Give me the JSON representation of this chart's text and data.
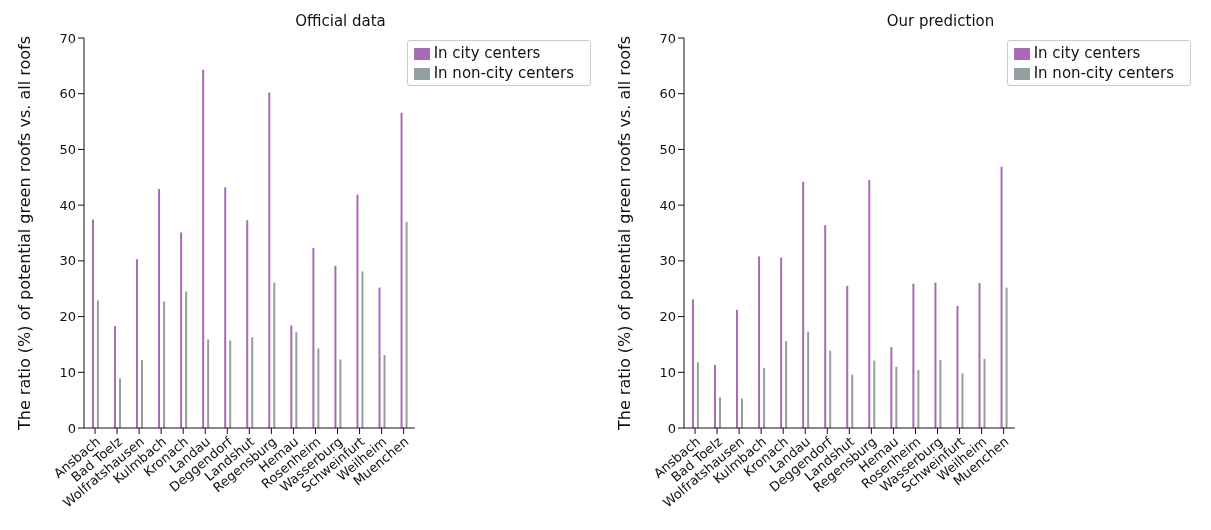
{
  "chart_data": [
    {
      "type": "bar",
      "title": "Official data",
      "ylabel": "The ratio (%) of potential green roofs vs. all roofs",
      "categories": [
        "Ansbach",
        "Bad Toelz",
        "Wolfratshausen",
        "Kulmbach",
        "Kronach",
        "Landau",
        "Deggendorf",
        "Landshut",
        "Regensburg",
        "Hemau",
        "Rosenheim",
        "Wasserburg",
        "Schweinfurt",
        "Weilheim",
        "Muenchen"
      ],
      "series": [
        {
          "name": "In city centers",
          "color": "#a86ab4",
          "values": [
            37.4,
            18.3,
            30.3,
            42.9,
            35.1,
            64.3,
            43.2,
            37.3,
            60.2,
            18.4,
            32.3,
            29.1,
            41.9,
            25.2,
            56.6
          ]
        },
        {
          "name": "In non-city centers",
          "color": "#939fa1",
          "values": [
            22.9,
            8.9,
            12.2,
            22.7,
            24.5,
            15.9,
            15.7,
            16.3,
            26.1,
            17.2,
            14.3,
            12.3,
            28.1,
            13.1,
            37.0
          ]
        }
      ],
      "ylim": [
        0,
        70
      ],
      "yticks": [
        0,
        10,
        20,
        30,
        40,
        50,
        60,
        70
      ],
      "grid": false,
      "legend": "top right"
    },
    {
      "type": "bar",
      "title": "Our prediction",
      "ylabel": "The ratio (%) of potential green roofs vs. all roofs",
      "categories": [
        "Ansbach",
        "Bad Toelz",
        "Wolfratshausen",
        "Kulmbach",
        "Kronach",
        "Landau",
        "Deggendorf",
        "Landshut",
        "Regensburg",
        "Hemau",
        "Rosenheim",
        "Wasserburg",
        "Schweinfurt",
        "Weilheim",
        "Muenchen"
      ],
      "series": [
        {
          "name": "In city centers",
          "color": "#a86ab4",
          "values": [
            23.1,
            11.3,
            21.2,
            30.8,
            30.6,
            44.2,
            36.4,
            25.5,
            44.5,
            14.5,
            25.9,
            26.1,
            21.9,
            26.0,
            46.9
          ]
        },
        {
          "name": "In non-city centers",
          "color": "#939fa1",
          "values": [
            11.8,
            5.5,
            5.3,
            10.8,
            15.6,
            17.3,
            13.9,
            9.6,
            12.1,
            11.0,
            10.4,
            12.2,
            9.8,
            12.4,
            25.2
          ]
        }
      ],
      "ylim": [
        0,
        70
      ],
      "yticks": [
        0,
        10,
        20,
        30,
        40,
        50,
        60,
        70
      ],
      "grid": false,
      "legend": "top right"
    }
  ]
}
